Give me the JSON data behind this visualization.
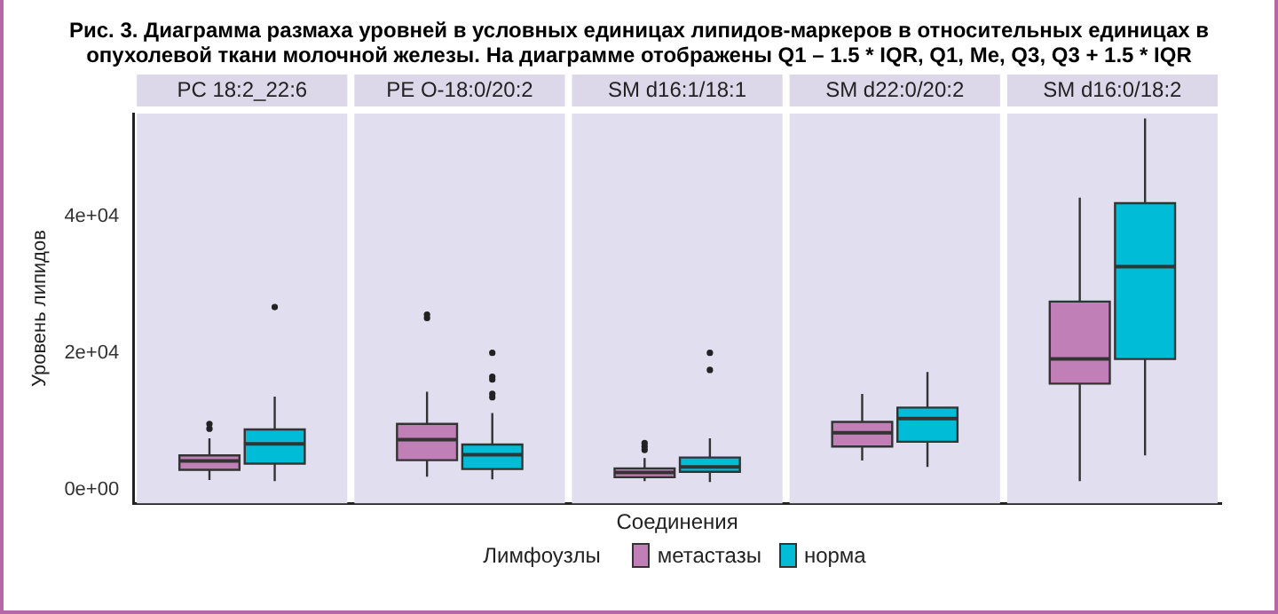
{
  "chart_data": {
    "type": "box",
    "title": "Рис. 3. Диаграмма размаха уровней в условных единицах липидов-маркеров в относительных единицах в опухолевой ткани молочной железы. На диаграмме отображены Q1 – 1.5 * IQR, Q1, Me, Q3, Q3 + 1.5 * IQR",
    "xlabel": "Соединения",
    "ylabel": "Уровень липидов",
    "legend_title": "Лимфоузлы",
    "legend": "bottom",
    "grid": false,
    "categories": [
      "PC 18:2_22:6",
      "PE O-18:0/20:2",
      "SM d16:1/18:1",
      "SM d22:0/20:2",
      "SM d16:0/18:2"
    ],
    "ylim": [
      -2000,
      55000
    ],
    "yticks": [
      {
        "value": 0,
        "label": "0e+00"
      },
      {
        "value": 20000,
        "label": "2e+04"
      },
      {
        "value": 40000,
        "label": "4e+04"
      }
    ],
    "series": [
      {
        "name": "метастазы",
        "color": "#c07fb6",
        "boxes": [
          {
            "low": 1400,
            "q1": 2900,
            "median": 4200,
            "q3": 5000,
            "high": 7500,
            "outliers": [
              8900,
              9600
            ]
          },
          {
            "low": 1900,
            "q1": 4300,
            "median": 7300,
            "q3": 9600,
            "high": 14300,
            "outliers": [
              25100,
              25600
            ]
          },
          {
            "low": 1250,
            "q1": 1800,
            "median": 2500,
            "q3": 3100,
            "high": 4600,
            "outliers": [
              5800,
              6300,
              6800
            ]
          },
          {
            "low": 4250,
            "q1": 6300,
            "median": 8300,
            "q3": 9900,
            "high": 14000
          },
          {
            "low": 1250,
            "q1": 15500,
            "median": 19100,
            "q3": 27500,
            "high": 42700
          }
        ]
      },
      {
        "name": "норма",
        "color": "#00bcd6",
        "boxes": [
          {
            "low": 1250,
            "q1": 3800,
            "median": 6700,
            "q3": 8800,
            "high": 13600,
            "outliers": [
              26700
            ]
          },
          {
            "low": 1500,
            "q1": 3000,
            "median": 5100,
            "q3": 6600,
            "high": 11200,
            "outliers": [
              13500,
              14000,
              16100,
              16500,
              20000
            ]
          },
          {
            "low": 1100,
            "q1": 2600,
            "median": 3300,
            "q3": 4700,
            "high": 7500,
            "outliers": [
              17500,
              20000
            ]
          },
          {
            "low": 3300,
            "q1": 7000,
            "median": 10400,
            "q3": 12000,
            "high": 17200
          },
          {
            "low": 5000,
            "q1": 19100,
            "median": 32600,
            "q3": 41900,
            "high": 54300
          }
        ]
      }
    ]
  }
}
